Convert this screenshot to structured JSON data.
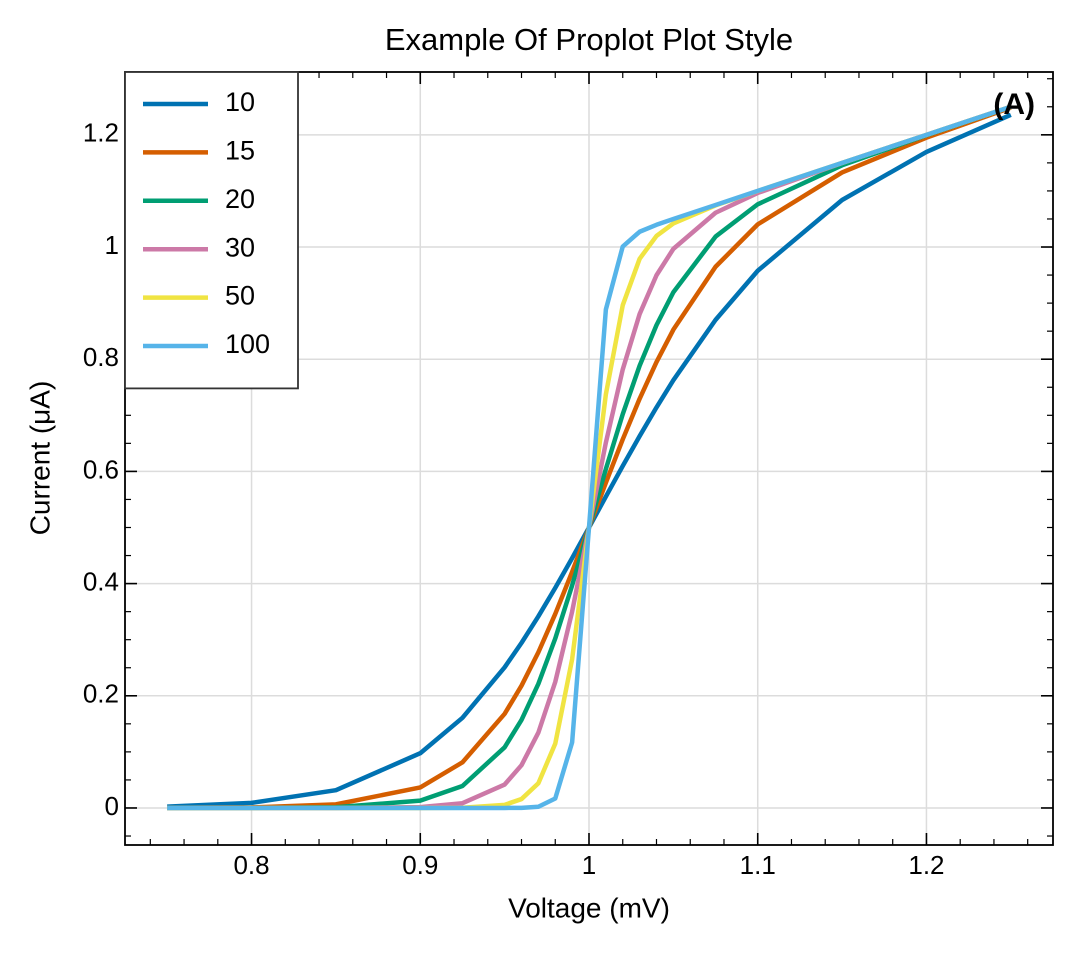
{
  "chart_data": {
    "type": "line",
    "title": "Example Of Proplot Plot Style",
    "xlabel": "Voltage (mV)",
    "ylabel": "Current (μA)",
    "annotation": "(A)",
    "x": [
      0.75,
      0.8,
      0.85,
      0.9,
      0.925,
      0.95,
      0.96,
      0.97,
      0.98,
      0.99,
      1,
      1.01,
      1.02,
      1.03,
      1.04,
      1.05,
      1.075,
      1.1,
      1.15,
      1.2,
      1.25
    ],
    "series": [
      {
        "name": "10",
        "color": "#0072B2",
        "values": [
          0.00237,
          0.00912,
          0.0317,
          0.0976,
          0.1607,
          0.2507,
          0.2943,
          0.3417,
          0.3923,
          0.4454,
          0.5,
          0.5551,
          0.6097,
          0.6629,
          0.7141,
          0.7626,
          0.8701,
          0.9577,
          1.0838,
          1.1695,
          1.2357
        ]
      },
      {
        "name": "15",
        "color": "#D55E00",
        "values": [
          0.000134,
          0.00099,
          0.00644,
          0.0366,
          0.0813,
          0.1679,
          0.218,
          0.2776,
          0.3459,
          0.4209,
          0.5,
          0.5798,
          0.6572,
          0.7295,
          0.7949,
          0.8527,
          0.9648,
          1.0404,
          1.1329,
          1.195,
          1.2484
        ]
      },
      {
        "name": "20",
        "color": "#009E73",
        "values": [
          7.5e-06,
          0.000106,
          0.00128,
          0.0131,
          0.0392,
          0.1082,
          0.1569,
          0.2214,
          0.3021,
          0.3968,
          0.5,
          0.6042,
          0.7021,
          0.7884,
          0.8607,
          0.9194,
          1.0186,
          1.0762,
          1.1457,
          1.1992,
          1.2498
        ]
      },
      {
        "name": "30",
        "color": "#CC79A7",
        "values": [
          0,
          1.2e-06,
          4.96e-05,
          0.00162,
          0.00852,
          0.0418,
          0.0763,
          0.1344,
          0.2247,
          0.3501,
          0.5,
          0.6514,
          0.7818,
          0.8805,
          0.9497,
          0.9967,
          1.0611,
          1.0964,
          1.1497,
          1.2,
          1.25
        ]
      },
      {
        "name": "50",
        "color": "#F0E442",
        "values": [
          0,
          0,
          1e-07,
          2.39e-05,
          0.00038,
          0.0056,
          0.0159,
          0.044,
          0.1147,
          0.2653,
          0.5,
          0.7374,
          0.8963,
          0.979,
          1.0198,
          1.0421,
          1.0742,
          1.0999,
          1.15,
          1.2,
          1.25
        ]
      },
      {
        "name": "100",
        "color": "#56B4E9",
        "values": [
          0,
          0,
          0,
          0,
          0,
          3.33e-05,
          0.000273,
          0.00219,
          0.0169,
          0.117,
          0.5,
          0.8886,
          1.0009,
          1.0272,
          1.0396,
          1.05,
          1.075,
          1.1,
          1.15,
          1.2,
          1.25
        ]
      }
    ],
    "xlim": [
      0.725,
      1.275
    ],
    "ylim": [
      -0.066,
      1.312
    ],
    "xticks": [
      0.8,
      0.9,
      1,
      1.1,
      1.2
    ],
    "yticks": [
      0,
      0.2,
      0.4,
      0.6,
      0.8,
      1,
      1.2
    ],
    "xminorticks": [
      0.74,
      0.76,
      0.78,
      0.82,
      0.84,
      0.86,
      0.88,
      0.92,
      0.94,
      0.96,
      0.98,
      1.02,
      1.04,
      1.06,
      1.08,
      1.12,
      1.14,
      1.16,
      1.18,
      1.22,
      1.24,
      1.26
    ],
    "yminorticks": [
      -0.05,
      0.05,
      0.1,
      0.15,
      0.25,
      0.3,
      0.35,
      0.45,
      0.5,
      0.55,
      0.65,
      0.7,
      0.75,
      0.85,
      0.9,
      0.95,
      1.05,
      1.1,
      1.15,
      1.25,
      1.3
    ],
    "grid": true,
    "legend": "upper left"
  }
}
